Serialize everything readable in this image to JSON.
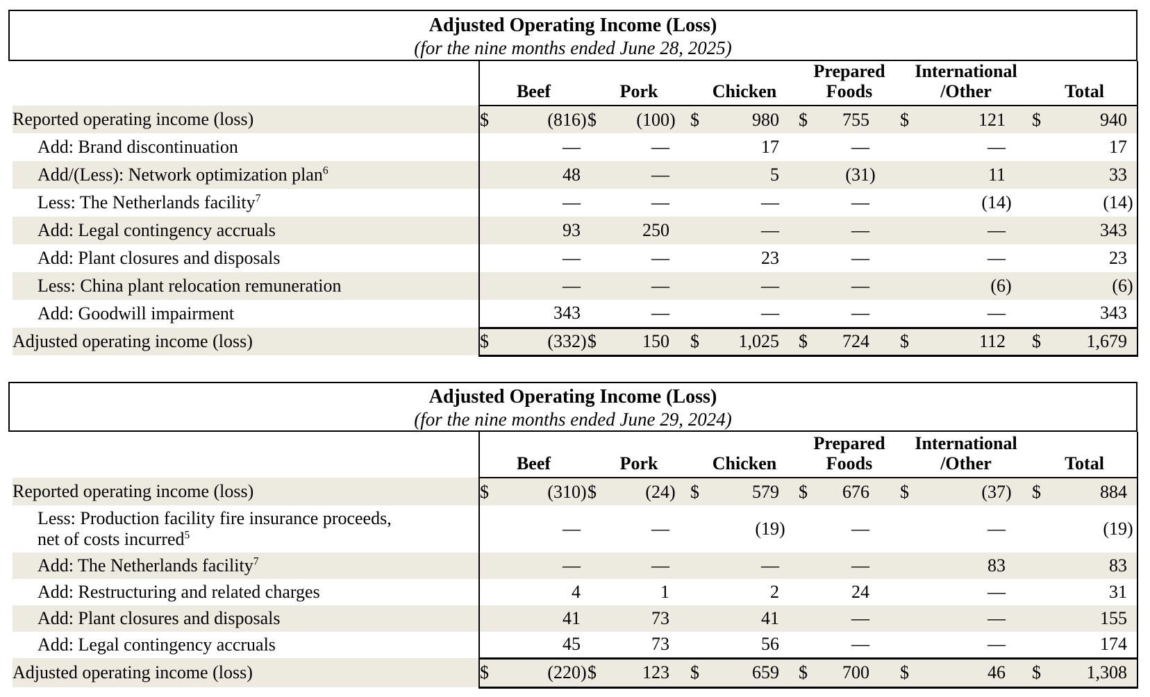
{
  "colors": {
    "background": "#FFFFFF",
    "text": "#000000",
    "border": "#000000",
    "row_shade": "#EDEAE0"
  },
  "tables": [
    {
      "title": "Adjusted Operating Income (Loss)",
      "subtitle": "(for the nine months ended June 28, 2025)",
      "columns": [
        {
          "key": "beef",
          "label": "Beef",
          "lines": [
            "Beef"
          ]
        },
        {
          "key": "pork",
          "label": "Pork",
          "lines": [
            "Pork"
          ]
        },
        {
          "key": "chicken",
          "label": "Chicken",
          "lines": [
            "Chicken"
          ]
        },
        {
          "key": "prepared-foods",
          "label": "Prepared Foods",
          "lines": [
            "Prepared",
            "Foods"
          ]
        },
        {
          "key": "international-other",
          "label": "International /Other",
          "lines": [
            "International",
            "/Other"
          ]
        },
        {
          "key": "total",
          "label": "Total",
          "lines": [
            "Total"
          ]
        }
      ],
      "rows": [
        {
          "label": "Reported operating income (loss)",
          "indent": false,
          "dollar": true,
          "shaded": true,
          "total": false,
          "values": [
            "(816)",
            "(100)",
            "980",
            "755",
            "121",
            "940"
          ]
        },
        {
          "label": "Add: Brand discontinuation",
          "indent": true,
          "dollar": false,
          "shaded": false,
          "total": false,
          "values": [
            "—",
            "—",
            "17",
            "—",
            "—",
            "17"
          ]
        },
        {
          "label": "Add/(Less): Network optimization plan",
          "footnote": "6",
          "indent": true,
          "dollar": false,
          "shaded": true,
          "total": false,
          "values": [
            "48",
            "—",
            "5",
            "(31)",
            "11",
            "33"
          ]
        },
        {
          "label": "Less: The Netherlands facility",
          "footnote": "7",
          "indent": true,
          "dollar": false,
          "shaded": false,
          "total": false,
          "values": [
            "—",
            "—",
            "—",
            "—",
            "(14)",
            "(14)"
          ]
        },
        {
          "label": "Add: Legal contingency accruals",
          "indent": true,
          "dollar": false,
          "shaded": true,
          "total": false,
          "values": [
            "93",
            "250",
            "—",
            "—",
            "—",
            "343"
          ]
        },
        {
          "label": "Add: Plant closures and disposals",
          "indent": true,
          "dollar": false,
          "shaded": false,
          "total": false,
          "values": [
            "—",
            "—",
            "23",
            "—",
            "—",
            "23"
          ]
        },
        {
          "label": "Less: China plant relocation remuneration",
          "indent": true,
          "dollar": false,
          "shaded": true,
          "total": false,
          "values": [
            "—",
            "—",
            "—",
            "—",
            "(6)",
            "(6)"
          ]
        },
        {
          "label": "Add: Goodwill impairment",
          "indent": true,
          "dollar": false,
          "shaded": false,
          "total": false,
          "values": [
            "343",
            "—",
            "—",
            "—",
            "—",
            "343"
          ]
        },
        {
          "label": "Adjusted operating income (loss)",
          "indent": false,
          "dollar": true,
          "shaded": true,
          "total": true,
          "values": [
            "(332)",
            "150",
            "1,025",
            "724",
            "112",
            "1,679"
          ]
        }
      ]
    },
    {
      "title": "Adjusted Operating Income (Loss)",
      "subtitle": "(for the nine months ended June 29, 2024)",
      "columns": [
        {
          "key": "beef",
          "label": "Beef",
          "lines": [
            "Beef"
          ]
        },
        {
          "key": "pork",
          "label": "Pork",
          "lines": [
            "Pork"
          ]
        },
        {
          "key": "chicken",
          "label": "Chicken",
          "lines": [
            "Chicken"
          ]
        },
        {
          "key": "prepared-foods",
          "label": "Prepared Foods",
          "lines": [
            "Prepared",
            "Foods"
          ]
        },
        {
          "key": "international-other",
          "label": "International /Other",
          "lines": [
            "International",
            "/Other"
          ]
        },
        {
          "key": "total",
          "label": "Total",
          "lines": [
            "Total"
          ]
        }
      ],
      "rows": [
        {
          "label": "Reported operating income (loss)",
          "indent": false,
          "dollar": true,
          "shaded": true,
          "total": false,
          "values": [
            "(310)",
            "(24)",
            "579",
            "676",
            "(37)",
            "884"
          ]
        },
        {
          "label": "Less: Production facility fire insurance proceeds, net of costs incurred",
          "footnote": "5",
          "label_lines": [
            "Less: Production facility fire insurance proceeds,",
            "net of costs incurred"
          ],
          "indent": true,
          "dollar": false,
          "shaded": false,
          "total": false,
          "values": [
            "—",
            "—",
            "(19)",
            "—",
            "—",
            "(19)"
          ]
        },
        {
          "label": "Add: The Netherlands facility",
          "footnote": "7",
          "indent": true,
          "dollar": false,
          "shaded": true,
          "total": false,
          "values": [
            "—",
            "—",
            "—",
            "—",
            "83",
            "83"
          ]
        },
        {
          "label": "Add: Restructuring and related charges",
          "indent": true,
          "dollar": false,
          "shaded": false,
          "total": false,
          "values": [
            "4",
            "1",
            "2",
            "24",
            "—",
            "31"
          ]
        },
        {
          "label": "Add: Plant closures and disposals",
          "indent": true,
          "dollar": false,
          "shaded": true,
          "total": false,
          "values": [
            "41",
            "73",
            "41",
            "—",
            "—",
            "155"
          ]
        },
        {
          "label": "Add: Legal contingency accruals",
          "indent": true,
          "dollar": false,
          "shaded": false,
          "total": false,
          "values": [
            "45",
            "73",
            "56",
            "—",
            "—",
            "174"
          ]
        },
        {
          "label": "Adjusted operating income (loss)",
          "indent": false,
          "dollar": true,
          "shaded": true,
          "total": true,
          "values": [
            "(220)",
            "123",
            "659",
            "700",
            "46",
            "1,308"
          ]
        }
      ]
    }
  ]
}
